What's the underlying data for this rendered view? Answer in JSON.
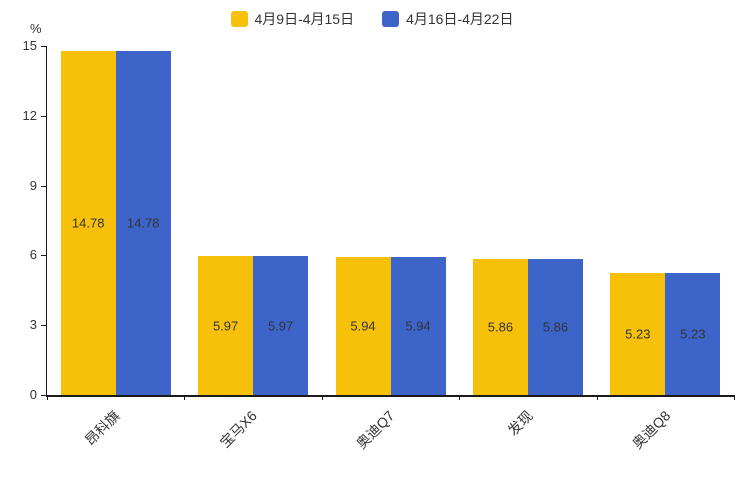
{
  "chart_data": {
    "type": "bar",
    "unit_label": "%",
    "categories": [
      "昂科旗",
      "宝马X6",
      "奥迪Q7",
      "发现",
      "奥迪Q8"
    ],
    "series": [
      {
        "name": "4月9日-4月15日",
        "color": "#F7C10A",
        "values": [
          14.78,
          5.97,
          5.94,
          5.86,
          5.23
        ]
      },
      {
        "name": "4月16日-4月22日",
        "color": "#3C64C9",
        "values": [
          14.78,
          5.97,
          5.94,
          5.86,
          5.23
        ]
      }
    ],
    "value_labels": [
      "14.78",
      "5.97",
      "5.94",
      "5.86",
      "5.23"
    ],
    "ylim": [
      0,
      15
    ],
    "yticks": [
      0,
      3,
      6,
      9,
      12,
      15
    ],
    "legend_position": "top",
    "grid": false,
    "colors": {
      "axis": "#1a1a1a",
      "text": "#333333",
      "background": "#ffffff"
    }
  }
}
